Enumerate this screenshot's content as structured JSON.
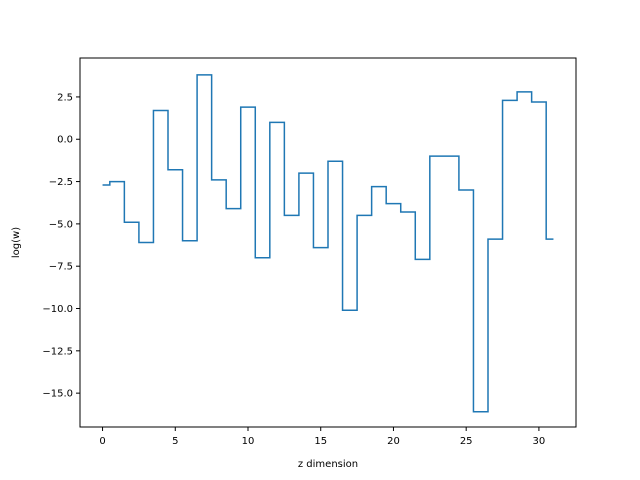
{
  "chart_data": {
    "type": "line",
    "style": "step",
    "xlabel": "z dimension",
    "ylabel": "log(w)",
    "xlim": [
      -1.55,
      32.55
    ],
    "ylim": [
      -17.0,
      4.8
    ],
    "xticks": [
      0,
      5,
      10,
      15,
      20,
      25,
      30
    ],
    "yticks": [
      2.5,
      0.0,
      -2.5,
      -5.0,
      -7.5,
      -10.0,
      -12.5,
      -15.0
    ],
    "xtick_labels": [
      "0",
      "5",
      "10",
      "15",
      "20",
      "25",
      "30"
    ],
    "ytick_labels": [
      "2.5",
      "0.0",
      "−2.5",
      "−5.0",
      "−7.5",
      "−10.0",
      "−12.5",
      "−15.0"
    ],
    "grid": false,
    "series": [
      {
        "color": "#1f77b4",
        "x": [
          0,
          1,
          2,
          3,
          4,
          5,
          6,
          7,
          8,
          9,
          10,
          11,
          12,
          13,
          14,
          15,
          16,
          17,
          18,
          19,
          20,
          21,
          22,
          23,
          24,
          25,
          26,
          27,
          28,
          29,
          30,
          31
        ],
        "values": [
          -2.7,
          -2.5,
          -4.9,
          -6.1,
          1.7,
          -1.8,
          -6.0,
          3.8,
          -2.4,
          -4.1,
          1.9,
          -7.0,
          1.0,
          -4.5,
          -2.0,
          -6.4,
          -1.3,
          -10.1,
          -4.5,
          -2.8,
          -3.8,
          -4.3,
          -7.1,
          -1.0,
          -1.0,
          -3.0,
          -16.1,
          -5.9,
          2.3,
          2.8,
          2.2,
          -5.9
        ]
      }
    ]
  }
}
